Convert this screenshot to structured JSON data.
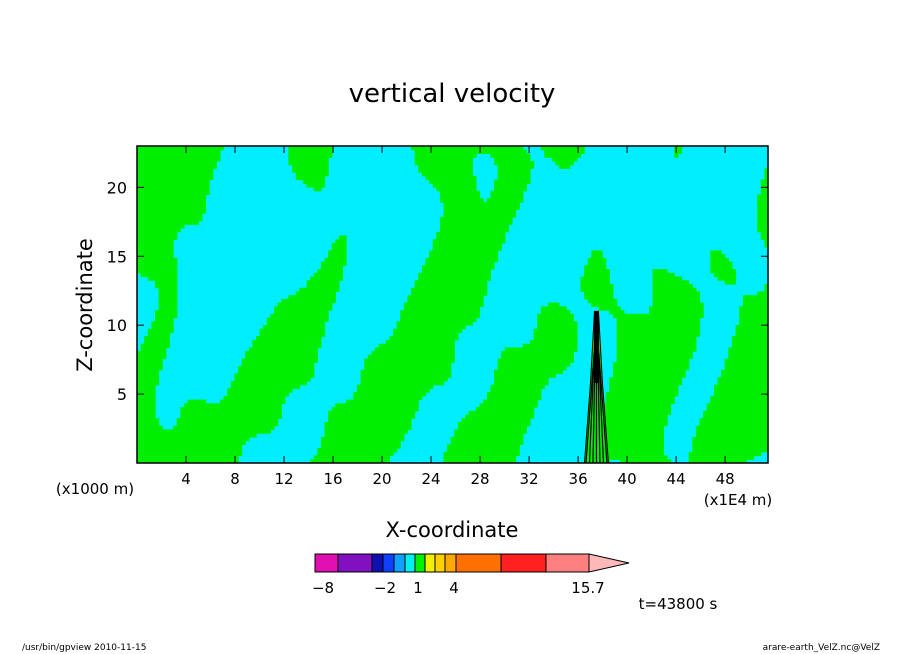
{
  "chart_data": {
    "type": "heatmap",
    "title": "vertical velocity",
    "xlabel": "X-coordinate",
    "ylabel": "Z-coordinate",
    "x_unit_left": "(x1000 m)",
    "x_unit_right": "(x1E4 m)",
    "xlim": [
      0,
      51.5
    ],
    "ylim": [
      0,
      23
    ],
    "x_ticks": [
      4,
      8,
      12,
      16,
      20,
      24,
      28,
      32,
      36,
      40,
      44,
      48
    ],
    "y_ticks": [
      5,
      10,
      15,
      20
    ],
    "colorbar": {
      "tick_labels": [
        {
          "value": -8,
          "label": "−8"
        },
        {
          "value": -2,
          "label": "−2"
        },
        {
          "value": 1,
          "label": "1"
        },
        {
          "value": 4,
          "label": "4"
        },
        {
          "value": 15.7,
          "label": "15.7"
        }
      ],
      "levels": [
        {
          "from": -8,
          "to": -6,
          "color": "#e010b0"
        },
        {
          "from": -6,
          "to": -3,
          "color": "#8010c0"
        },
        {
          "from": -3,
          "to": -2.5,
          "color": "#1010b0"
        },
        {
          "from": -2.5,
          "to": -1.5,
          "color": "#1040ff"
        },
        {
          "from": -1.5,
          "to": -0.5,
          "color": "#10a0ff"
        },
        {
          "from": -0.5,
          "to": 0,
          "color": "#00f0f0"
        },
        {
          "from": 0,
          "to": 1,
          "color": "#00f000"
        },
        {
          "from": 1,
          "to": 2,
          "color": "#f0f000"
        },
        {
          "from": 2,
          "to": 3,
          "color": "#ffd000"
        },
        {
          "from": 3,
          "to": 4,
          "color": "#ffa800"
        },
        {
          "from": 4,
          "to": 7,
          "color": "#ff7000"
        },
        {
          "from": 7,
          "to": 10,
          "color": "#ff2020"
        },
        {
          "from": 10,
          "to": 13,
          "color": "#ff8080"
        },
        {
          "from": 13,
          "to": 15.7,
          "color": "#ffb8b8"
        }
      ]
    },
    "field_colors": {
      "negative": "#00eeff",
      "positive": "#00ee00",
      "contour": "#000000"
    },
    "updraft": {
      "x": 37.5,
      "top_z": 11
    },
    "time_label": "t=43800 s"
  },
  "footer": {
    "left": "/usr/bin/gpview  2010-11-15",
    "right": "arare-earth_VelZ.nc@VelZ"
  }
}
